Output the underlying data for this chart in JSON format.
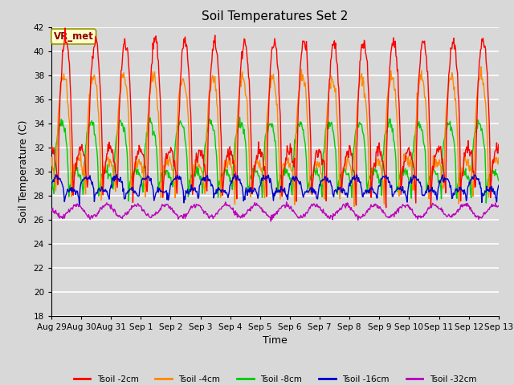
{
  "title": "Soil Temperatures Set 2",
  "xlabel": "Time",
  "ylabel": "Soil Temperature (C)",
  "ylim": [
    18,
    42
  ],
  "yticks": [
    18,
    20,
    22,
    24,
    26,
    28,
    30,
    32,
    34,
    36,
    38,
    40,
    42
  ],
  "bg_color": "#d8d8d8",
  "annotation_text": "VR_met",
  "annotation_bg": "#ffffcc",
  "annotation_border": "#999900",
  "colors": {
    "Tsoil -2cm": "#ff0000",
    "Tsoil -4cm": "#ff8800",
    "Tsoil -8cm": "#00cc00",
    "Tsoil -16cm": "#0000cc",
    "Tsoil -32cm": "#bb00bb"
  },
  "legend_labels": [
    "Tsoil -2cm",
    "Tsoil -4cm",
    "Tsoil -8cm",
    "Tsoil -16cm",
    "Tsoil -32cm"
  ],
  "xtick_labels": [
    "Aug 29",
    "Aug 30",
    "Aug 31",
    "Sep 1",
    "Sep 2",
    "Sep 3",
    "Sep 4",
    "Sep 5",
    "Sep 6",
    "Sep 7",
    "Sep 8",
    "Sep 9",
    "Sep 10",
    "Sep 11",
    "Sep 12",
    "Sep 13"
  ],
  "n_days": 15,
  "pts_per_day": 48
}
